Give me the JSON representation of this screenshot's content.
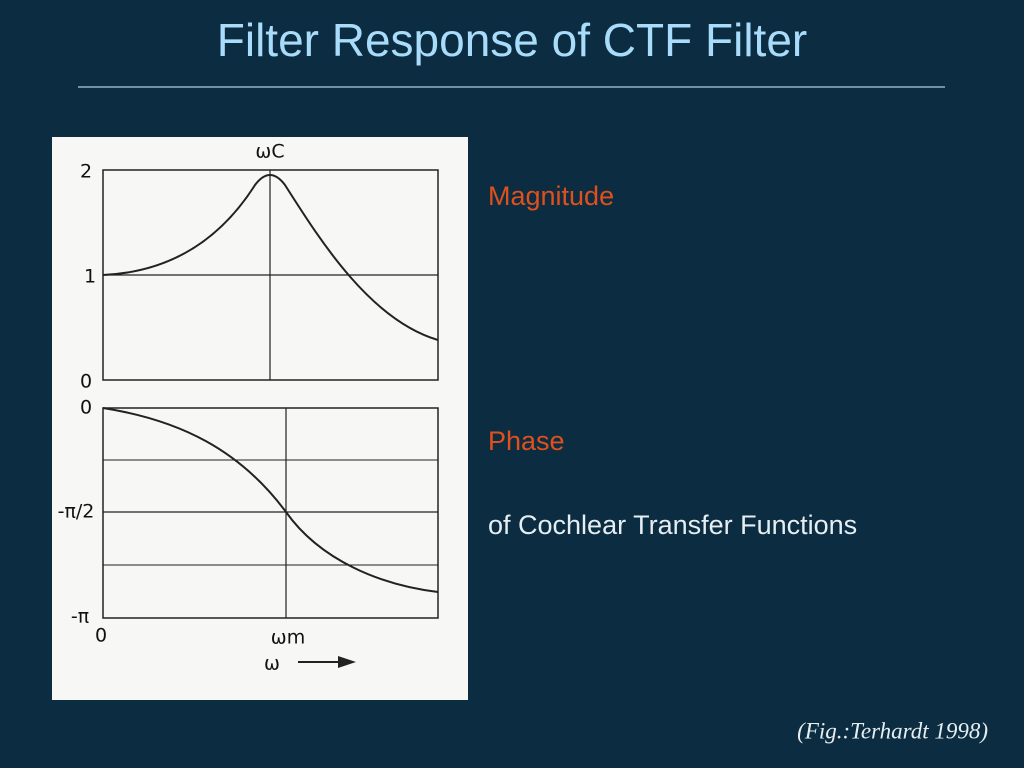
{
  "title": "Filter Response of CTF Filter",
  "figure": {
    "magnitude_ticks": [
      "2",
      "1",
      "0"
    ],
    "phase_ticks": [
      "0",
      "-π/2",
      "-π"
    ],
    "x_origin": "0",
    "omega_c": "ωC",
    "omega_m": "ωm",
    "omega": "ω"
  },
  "labels": {
    "magnitude": "Magnitude",
    "phase": "Phase",
    "description": "of Cochlear Transfer Functions"
  },
  "caption": "(Fig.:Terhardt 1998)"
}
